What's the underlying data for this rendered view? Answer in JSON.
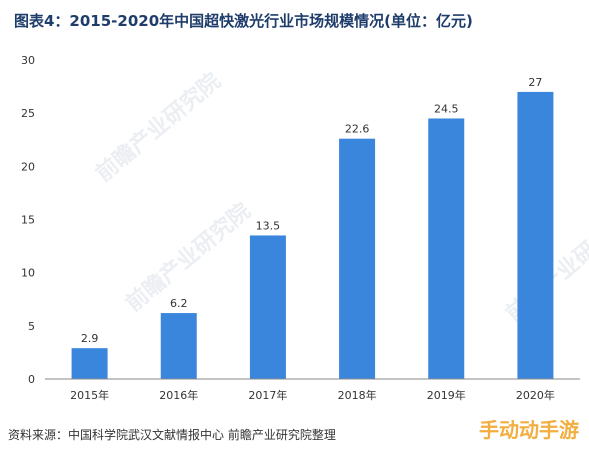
{
  "title": "图表4：2015-2020年中国超快激光行业市场规模情况(单位：亿元)",
  "source": "资料来源：中国科学院武汉文献情报中心 前瞻产业研究院整理",
  "watermark": "前瞻产业研究院",
  "corner_watermark": "手动动手游",
  "colors": {
    "bar": "#3a86dc",
    "axis": "#888888",
    "text": "#333333"
  },
  "chart_data": {
    "type": "bar",
    "title": "图表4：2015-2020年中国超快激光行业市场规模情况(单位：亿元)",
    "xlabel": "",
    "ylabel": "",
    "categories": [
      "2015年",
      "2016年",
      "2017年",
      "2018年",
      "2019年",
      "2020年"
    ],
    "values": [
      2.9,
      6.2,
      13.5,
      22.6,
      24.5,
      27
    ],
    "value_labels": [
      "2.9",
      "6.2",
      "13.5",
      "22.6",
      "24.5",
      "27"
    ],
    "ylim": [
      0,
      30
    ],
    "yticks": [
      "0",
      "5",
      "10",
      "15",
      "20",
      "25",
      "30"
    ],
    "ytick_values": [
      0,
      5,
      10,
      15,
      20,
      25,
      30
    ],
    "grid": false,
    "legend": "none"
  }
}
